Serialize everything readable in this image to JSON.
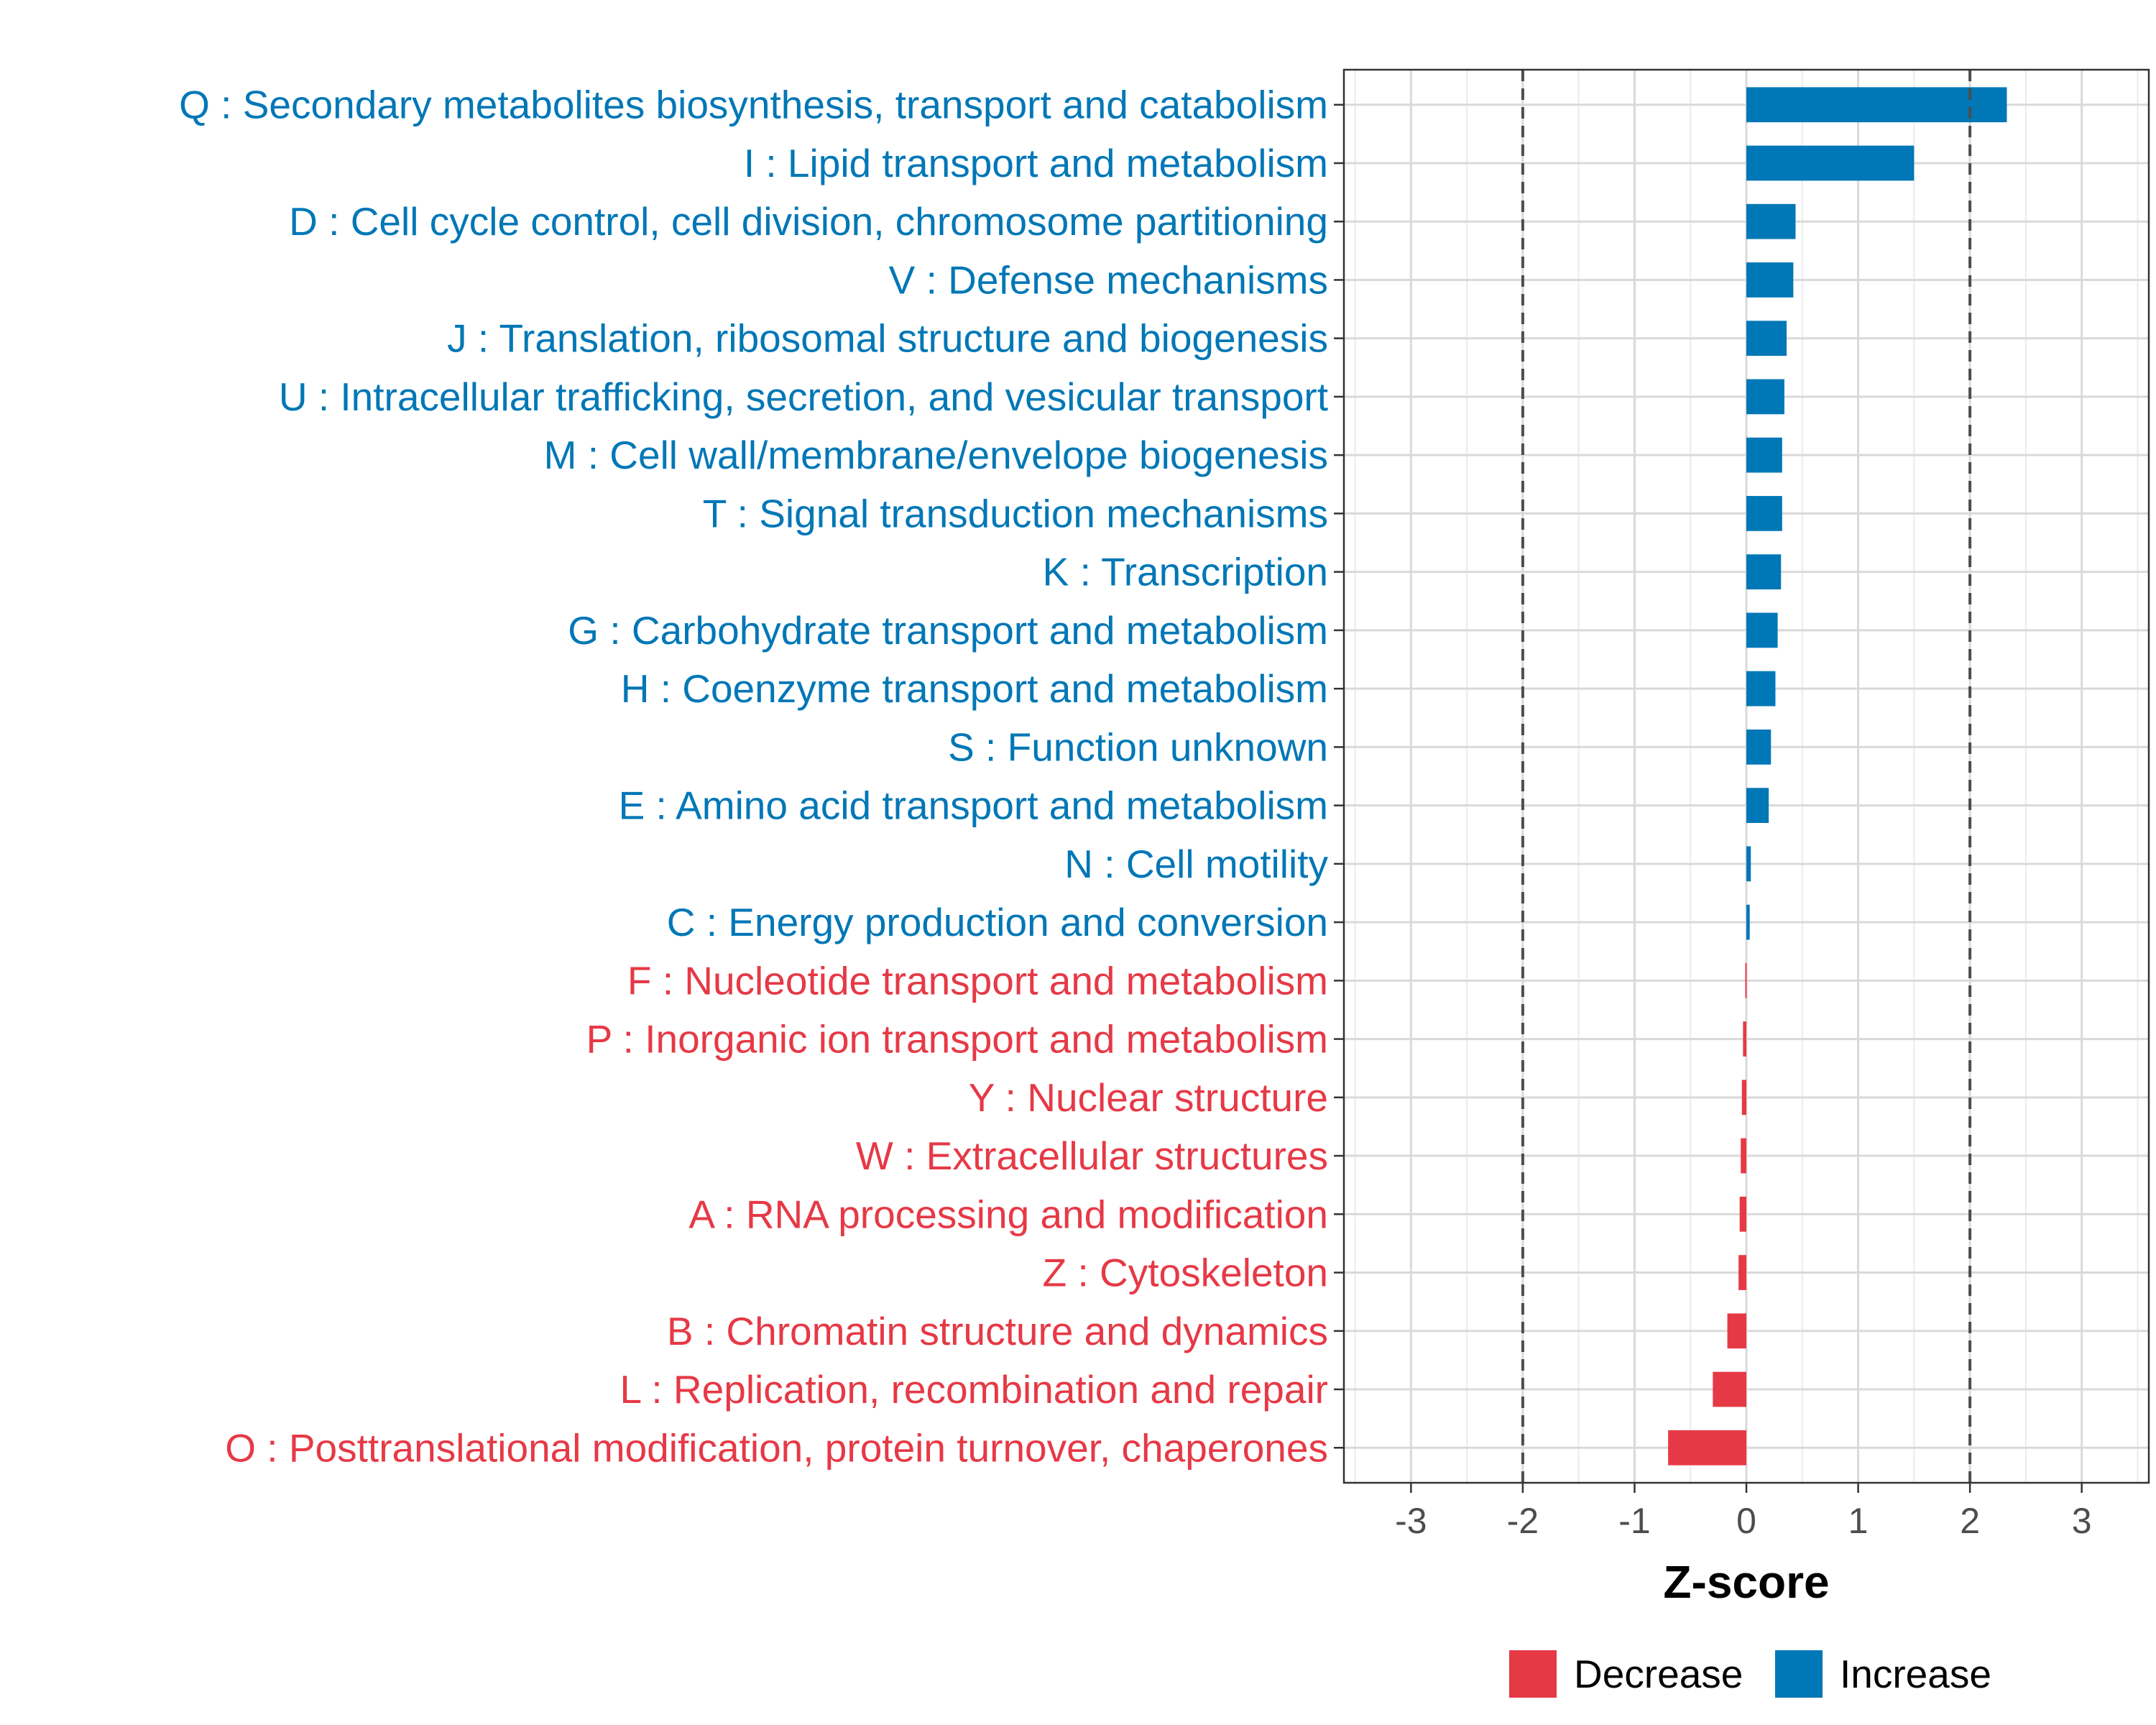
{
  "chart_data": {
    "type": "bar",
    "orientation": "horizontal",
    "xlabel": "Z-score",
    "ylabel": "",
    "xlim": [
      -3.6,
      3.6
    ],
    "x_ticks": [
      -3,
      -2,
      -1,
      0,
      1,
      2,
      3
    ],
    "x_tick_labels": [
      "-3",
      "-2",
      "-1",
      "0",
      "1",
      "2",
      "3"
    ],
    "threshold_lines": [
      -2,
      2
    ],
    "grid": true,
    "legend_position": "bottom",
    "legend": [
      {
        "label": "Decrease",
        "color": "#e63946"
      },
      {
        "label": "Increase",
        "color": "#0077b6"
      }
    ],
    "categories": [
      {
        "label": "Q : Secondary metabolites biosynthesis, transport and catabolism",
        "value": 2.33,
        "group": "Increase"
      },
      {
        "label": "I : Lipid transport and metabolism",
        "value": 1.5,
        "group": "Increase"
      },
      {
        "label": "D : Cell cycle control, cell division, chromosome partitioning",
        "value": 0.44,
        "group": "Increase"
      },
      {
        "label": "V : Defense mechanisms",
        "value": 0.42,
        "group": "Increase"
      },
      {
        "label": "J : Translation, ribosomal structure and biogenesis",
        "value": 0.36,
        "group": "Increase"
      },
      {
        "label": "U : Intracellular trafficking, secretion, and vesicular transport",
        "value": 0.34,
        "group": "Increase"
      },
      {
        "label": "M : Cell wall/membrane/envelope biogenesis",
        "value": 0.32,
        "group": "Increase"
      },
      {
        "label": "T : Signal transduction mechanisms",
        "value": 0.32,
        "group": "Increase"
      },
      {
        "label": "K : Transcription",
        "value": 0.31,
        "group": "Increase"
      },
      {
        "label": "G : Carbohydrate transport and metabolism",
        "value": 0.28,
        "group": "Increase"
      },
      {
        "label": "H : Coenzyme transport and metabolism",
        "value": 0.26,
        "group": "Increase"
      },
      {
        "label": "S : Function unknown",
        "value": 0.22,
        "group": "Increase"
      },
      {
        "label": "E : Amino acid transport and metabolism",
        "value": 0.2,
        "group": "Increase"
      },
      {
        "label": "N : Cell motility",
        "value": 0.04,
        "group": "Increase"
      },
      {
        "label": "C : Energy production and conversion",
        "value": 0.03,
        "group": "Increase"
      },
      {
        "label": "F : Nucleotide transport and metabolism",
        "value": -0.01,
        "group": "Decrease"
      },
      {
        "label": "P : Inorganic ion transport and metabolism",
        "value": -0.03,
        "group": "Decrease"
      },
      {
        "label": "Y : Nuclear structure",
        "value": -0.04,
        "group": "Decrease"
      },
      {
        "label": "W : Extracellular structures",
        "value": -0.05,
        "group": "Decrease"
      },
      {
        "label": "A : RNA processing and modification",
        "value": -0.06,
        "group": "Decrease"
      },
      {
        "label": "Z : Cytoskeleton",
        "value": -0.07,
        "group": "Decrease"
      },
      {
        "label": "B : Chromatin structure and dynamics",
        "value": -0.17,
        "group": "Decrease"
      },
      {
        "label": "L : Replication, recombination and repair",
        "value": -0.3,
        "group": "Decrease"
      },
      {
        "label": "O : Posttranslational modification, protein turnover, chaperones",
        "value": -0.7,
        "group": "Decrease"
      }
    ]
  }
}
